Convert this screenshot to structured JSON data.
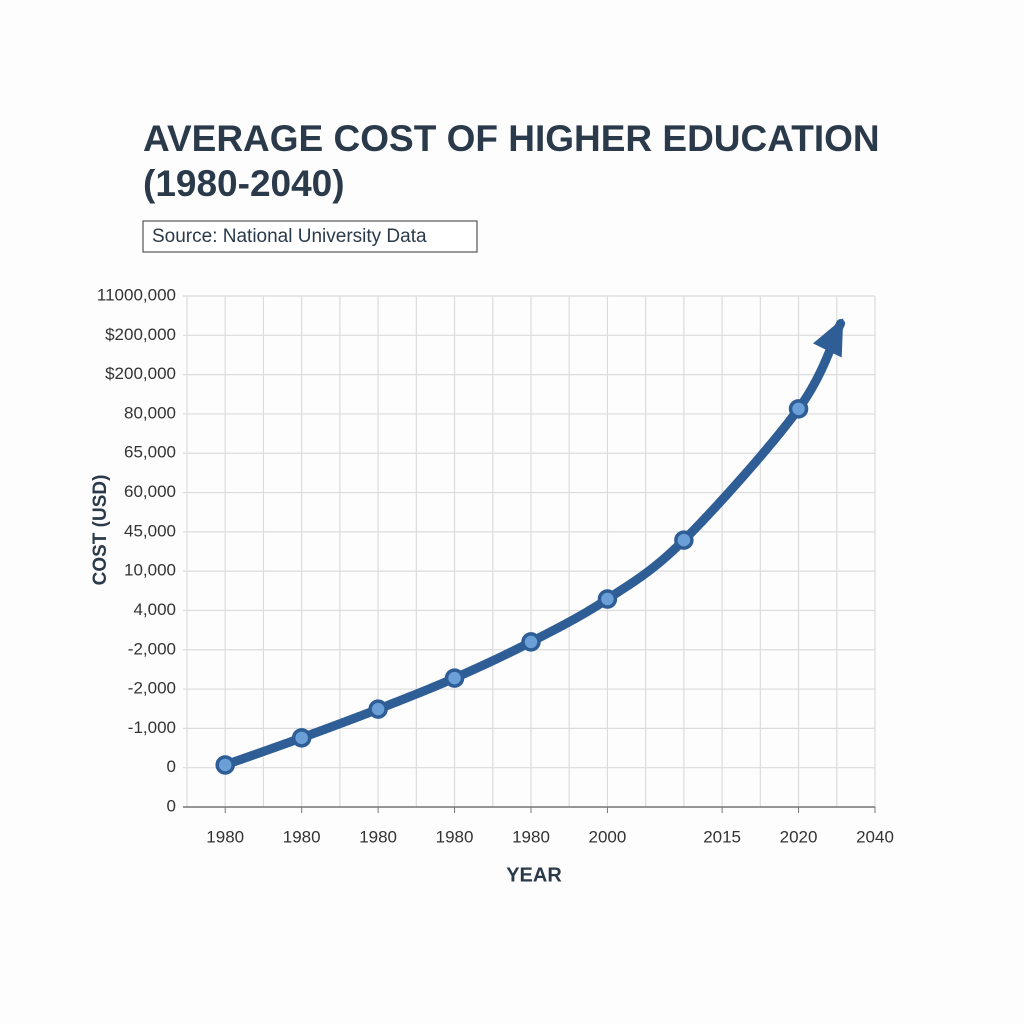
{
  "chart_data": {
    "type": "line",
    "title": [
      "AVERAGE COST OF HIGHER EDUCATION",
      "(1980-2040)"
    ],
    "subtitle": "Source: National University Data",
    "x_label": "YEAR",
    "y_label": "COST (USD)",
    "xlim": [
      0,
      18
    ],
    "ylim": [
      0,
      13
    ],
    "xticks": [
      {
        "value": 1,
        "label": "1980"
      },
      {
        "value": 3,
        "label": "1980"
      },
      {
        "value": 5,
        "label": "1980"
      },
      {
        "value": 7,
        "label": "1980"
      },
      {
        "value": 9,
        "label": "1980"
      },
      {
        "value": 11,
        "label": "2000"
      },
      {
        "value": 14,
        "label": "2015"
      },
      {
        "value": 16,
        "label": "2020"
      },
      {
        "value": 18,
        "label": "2040"
      }
    ],
    "yticks": [
      {
        "value": 0,
        "label": "0"
      },
      {
        "value": 1,
        "label": "0"
      },
      {
        "value": 2,
        "label": "-1,000"
      },
      {
        "value": 3,
        "label": "-2,000"
      },
      {
        "value": 4,
        "label": "-2,000"
      },
      {
        "value": 5,
        "label": "4,000"
      },
      {
        "value": 6,
        "label": "10,000"
      },
      {
        "value": 7,
        "label": "45,000"
      },
      {
        "value": 8,
        "label": "60,000"
      },
      {
        "value": 9,
        "label": "65,000"
      },
      {
        "value": 10,
        "label": "80,000"
      },
      {
        "value": 11,
        "label": "$200,000"
      },
      {
        "value": 12,
        "label": "$200,000"
      },
      {
        "value": 13,
        "label": "11000,000"
      }
    ],
    "grid": true,
    "end_arrow": true,
    "series": [
      {
        "color": "#2e5e95",
        "marker_color": "#6a9fd8",
        "x": [
          1,
          3,
          5,
          7,
          9,
          11,
          13,
          16,
          17.1
        ],
        "values": [
          1.07,
          1.76,
          2.49,
          3.28,
          4.2,
          5.29,
          6.79,
          10.13,
          12.3
        ]
      }
    ]
  }
}
